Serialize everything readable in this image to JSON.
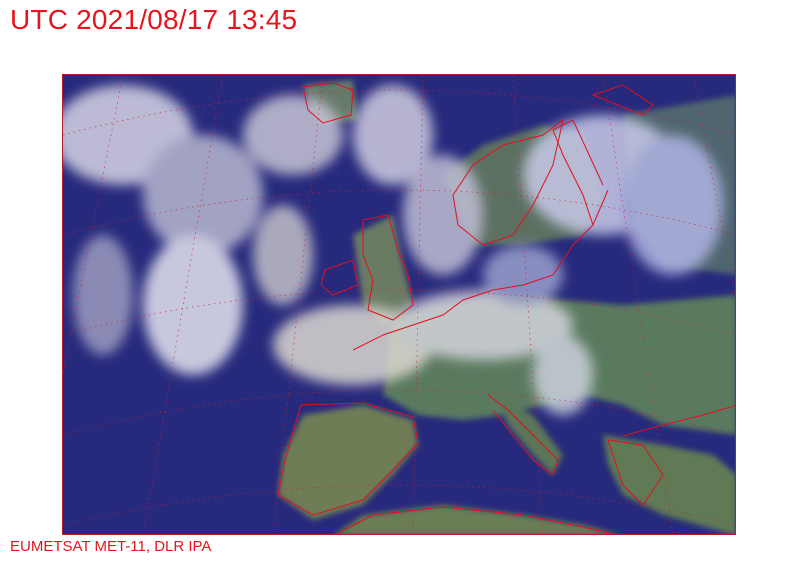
{
  "header": {
    "title": "UTC 2021/08/17 13:45"
  },
  "map": {
    "kind": "satellite-image",
    "region": "Europe",
    "colors": {
      "ocean": "#26287a",
      "land": "#5d7a5a",
      "cloud": "#d8d8e8",
      "coastline": "#e01020",
      "grid": "#d02030"
    }
  },
  "footer": {
    "credit": "EUMETSAT MET-11, DLR IPA"
  }
}
